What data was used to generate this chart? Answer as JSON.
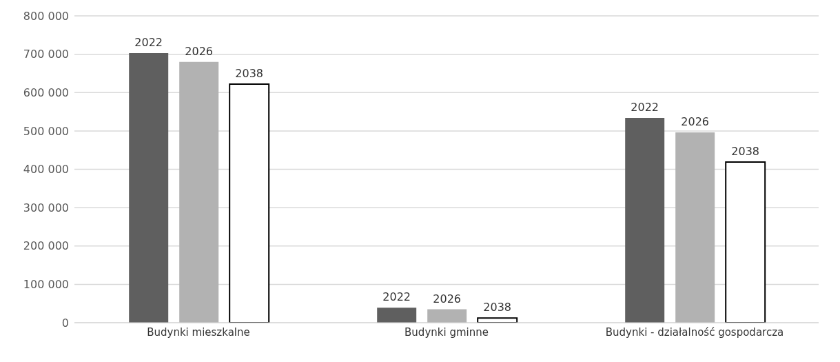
{
  "chart_data": {
    "type": "bar",
    "categories": [
      "Budynki mieszkalne",
      "Budynki gminne",
      "Budynki - działalność gospodarcza"
    ],
    "series": [
      {
        "name": "2022",
        "color": "#5f5f5f",
        "values": [
          703000,
          39000,
          534000
        ]
      },
      {
        "name": "2026",
        "color": "#b2b2b2",
        "values": [
          680000,
          35000,
          496000
        ]
      },
      {
        "name": "2038",
        "color": "#ffffff",
        "values": [
          622000,
          12000,
          419000
        ]
      }
    ],
    "ylim": [
      0,
      800000
    ],
    "yticks": [
      {
        "value": 0,
        "label": "0"
      },
      {
        "value": 100000,
        "label": "100 000"
      },
      {
        "value": 200000,
        "label": "200 000"
      },
      {
        "value": 300000,
        "label": "300 000"
      },
      {
        "value": 400000,
        "label": "400 000"
      },
      {
        "value": 500000,
        "label": "500 000"
      },
      {
        "value": 600000,
        "label": "600 000"
      },
      {
        "value": 700000,
        "label": "700 000"
      },
      {
        "value": 800000,
        "label": "800 000"
      }
    ],
    "grid": "y",
    "legend": false
  }
}
